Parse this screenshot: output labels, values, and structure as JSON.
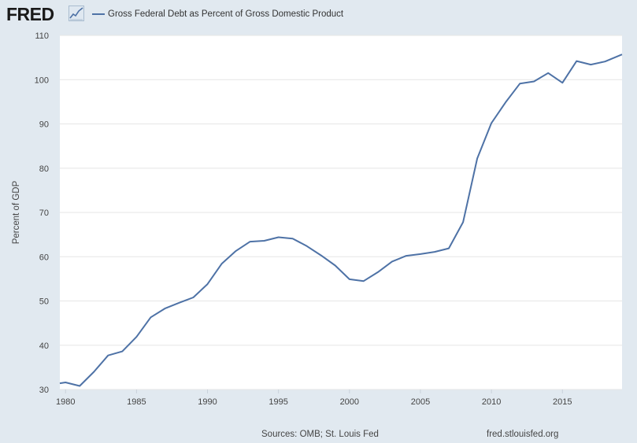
{
  "header": {
    "logo_text": "FRED",
    "logo_icon": "line-chart-icon"
  },
  "colors": {
    "series": "#4e72a6",
    "plot_bg": "#ffffff",
    "page_bg": "#e1e9f0",
    "grid": "#e6e6e6"
  },
  "footer": {
    "sources": "Sources: OMB; St. Louis Fed",
    "url": "fred.stlouisfed.org"
  },
  "chart_data": {
    "type": "line",
    "ylabel": "Percent of GDP",
    "xlim": [
      1979.6,
      2019.2
    ],
    "ylim": [
      30,
      110
    ],
    "x_ticks": [
      1980,
      1985,
      1990,
      1995,
      2000,
      2005,
      2010,
      2015
    ],
    "y_ticks": [
      30,
      40,
      50,
      60,
      70,
      80,
      90,
      100,
      110
    ],
    "grid": "horizontal",
    "legend": "top-left",
    "series": [
      {
        "name": "Gross Federal Debt as Percent of Gross Domestic Product",
        "x": [
          1979.6,
          1980,
          1981,
          1982,
          1983,
          1984,
          1985,
          1986,
          1987,
          1988,
          1989,
          1990,
          1991,
          1992,
          1993,
          1994,
          1995,
          1996,
          1997,
          1998,
          1999,
          2000,
          2001,
          2002,
          2003,
          2004,
          2005,
          2006,
          2007,
          2008,
          2009,
          2010,
          2011,
          2012,
          2013,
          2014,
          2015,
          2016,
          2017,
          2018,
          2019.2
        ],
        "y": [
          31.4,
          31.6,
          30.8,
          34.0,
          37.7,
          38.6,
          41.9,
          46.3,
          48.3,
          49.6,
          50.8,
          53.8,
          58.4,
          61.3,
          63.4,
          63.6,
          64.4,
          64.1,
          62.4,
          60.3,
          58.0,
          54.9,
          54.5,
          56.5,
          58.9,
          60.2,
          60.6,
          61.1,
          61.9,
          67.8,
          82.2,
          90.2,
          94.9,
          99.1,
          99.6,
          101.5,
          99.3,
          104.2,
          103.4,
          104.1,
          105.7
        ]
      }
    ]
  }
}
